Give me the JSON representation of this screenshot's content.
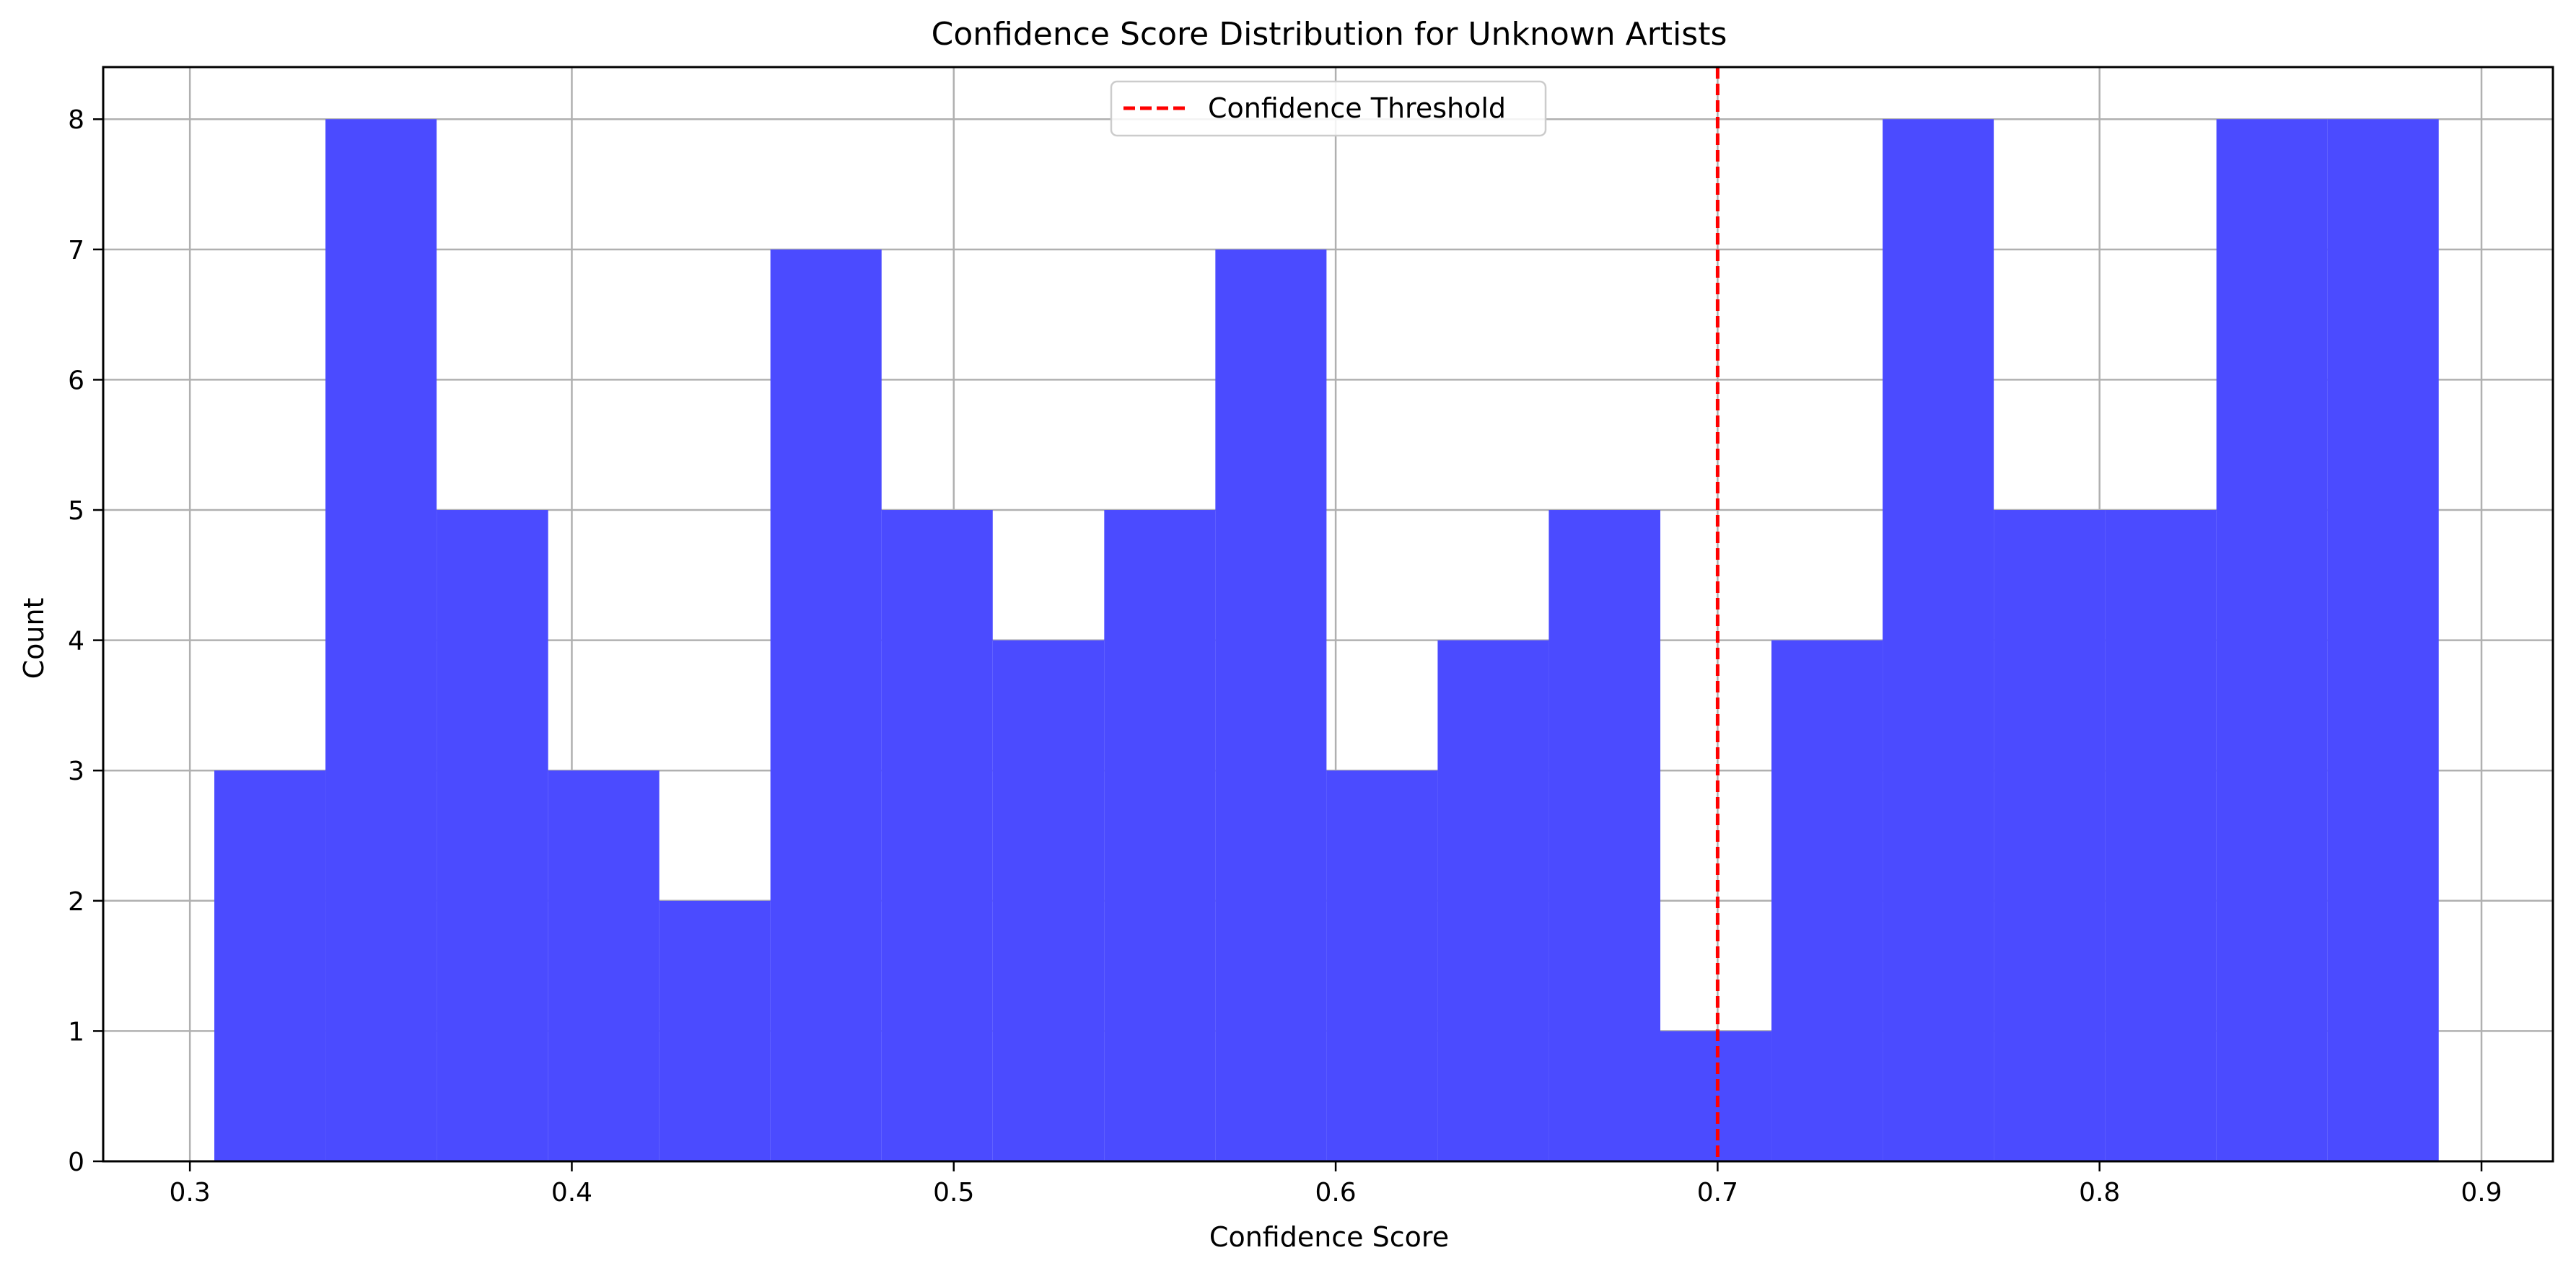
{
  "chart_data": {
    "type": "bar",
    "title": "Confidence Score Distribution for Unknown Artists",
    "xlabel": "Confidence Score",
    "ylabel": "Count",
    "xlim": [
      0.2773,
      0.9187
    ],
    "ylim": [
      0,
      8.4
    ],
    "xticks": [
      0.3,
      0.4,
      0.5,
      0.6,
      0.7,
      0.8,
      0.9
    ],
    "xtick_labels": [
      "0.3",
      "0.4",
      "0.5",
      "0.6",
      "0.7",
      "0.8",
      "0.9"
    ],
    "yticks": [
      0,
      1,
      2,
      3,
      4,
      5,
      6,
      7,
      8
    ],
    "ytick_labels": [
      "0",
      "1",
      "2",
      "3",
      "4",
      "5",
      "6",
      "7",
      "8"
    ],
    "grid": true,
    "bin_edges": [
      0.3064,
      0.3355,
      0.3646,
      0.3938,
      0.4229,
      0.452,
      0.4811,
      0.5102,
      0.5394,
      0.5685,
      0.5976,
      0.6267,
      0.6558,
      0.685,
      0.7141,
      0.7432,
      0.7723,
      0.8014,
      0.8306,
      0.8597,
      0.8888
    ],
    "counts": [
      3,
      8,
      5,
      3,
      2,
      7,
      5,
      4,
      5,
      7,
      3,
      4,
      5,
      1,
      4,
      8,
      5,
      5,
      8,
      8
    ],
    "bar_color": "#4b4bff",
    "threshold": {
      "x": 0.7,
      "label": "Confidence Threshold",
      "color": "#ff0000",
      "style": "dashed"
    },
    "legend_position": "upper-center"
  }
}
